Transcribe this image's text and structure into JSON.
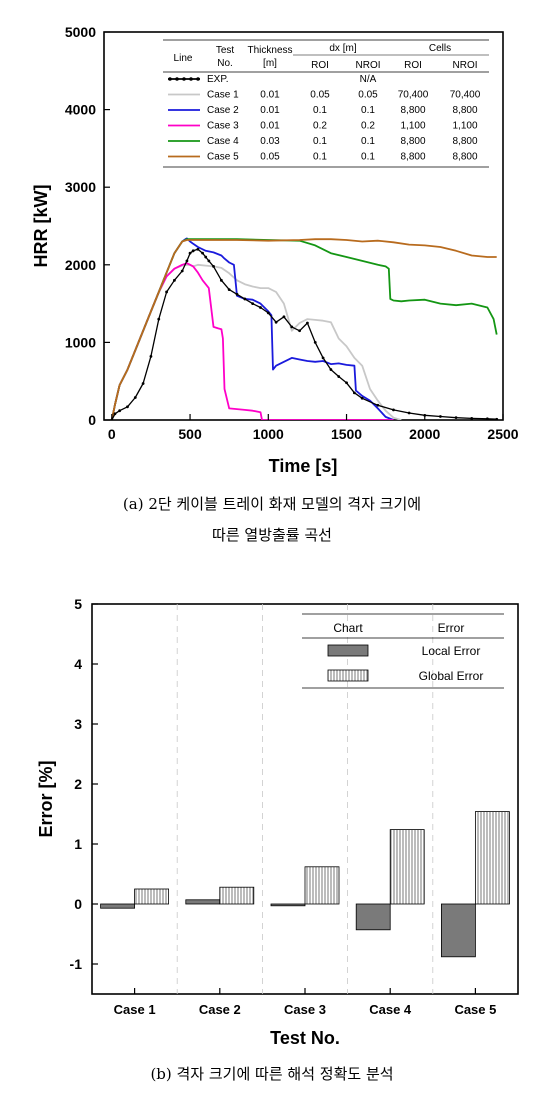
{
  "charts": [
    {
      "caption_line1": "(a) 2단 케이블 트레이 화재 모델의 격자 크기에",
      "caption_line2": "따른 열방출률 곡선",
      "chart_data": {
        "type": "line",
        "xlabel": "Time [s]",
        "ylabel": "HRR [kW]",
        "xlim": [
          -50,
          2500
        ],
        "ylim": [
          0,
          5000
        ],
        "xticks": [
          0,
          500,
          1000,
          1500,
          2000,
          2500
        ],
        "yticks": [
          0,
          1000,
          2000,
          3000,
          4000,
          5000
        ],
        "legend_table": {
          "headers": {
            "line": "Line",
            "test_no": "Test\nNo.",
            "thickness": "Thickness\n[m]",
            "dx": "dx [m]",
            "cells": "Cells",
            "roi": "ROI",
            "nroi": "NROI"
          },
          "rows": [
            {
              "name": "EXP.",
              "thickness": "",
              "dx_roi": "N/A",
              "dx_nroi": "",
              "cells_roi": "",
              "cells_nroi": ""
            },
            {
              "name": "Case 1",
              "thickness": "0.01",
              "dx_roi": "0.05",
              "dx_nroi": "0.05",
              "cells_roi": "70,400",
              "cells_nroi": "70,400"
            },
            {
              "name": "Case 2",
              "thickness": "0.01",
              "dx_roi": "0.1",
              "dx_nroi": "0.1",
              "cells_roi": "8,800",
              "cells_nroi": "8,800"
            },
            {
              "name": "Case 3",
              "thickness": "0.01",
              "dx_roi": "0.2",
              "dx_nroi": "0.2",
              "cells_roi": "1,100",
              "cells_nroi": "1,100"
            },
            {
              "name": "Case 4",
              "thickness": "0.03",
              "dx_roi": "0.1",
              "dx_nroi": "0.1",
              "cells_roi": "8,800",
              "cells_nroi": "8,800"
            },
            {
              "name": "Case 5",
              "thickness": "0.05",
              "dx_roi": "0.1",
              "dx_nroi": "0.1",
              "cells_roi": "8,800",
              "cells_nroi": "8,800"
            }
          ]
        },
        "series": [
          {
            "name": "EXP.",
            "color": "#000000",
            "marker": "dot",
            "x": [
              0,
              20,
              50,
              100,
              150,
              200,
              250,
              300,
              350,
              400,
              450,
              480,
              500,
              520,
              550,
              580,
              600,
              620,
              650,
              700,
              750,
              800,
              850,
              900,
              950,
              1000,
              1050,
              1100,
              1150,
              1200,
              1250,
              1300,
              1350,
              1400,
              1450,
              1500,
              1550,
              1600,
              1700,
              1800,
              1900,
              2000,
              2100,
              2200,
              2300,
              2400,
              2460
            ],
            "y": [
              0,
              80,
              120,
              170,
              290,
              470,
              820,
              1300,
              1650,
              1800,
              1920,
              2050,
              2150,
              2180,
              2200,
              2150,
              2100,
              2050,
              1980,
              1800,
              1680,
              1620,
              1560,
              1500,
              1450,
              1380,
              1260,
              1330,
              1200,
              1150,
              1250,
              1000,
              800,
              650,
              560,
              480,
              350,
              280,
              190,
              130,
              90,
              60,
              45,
              30,
              20,
              15,
              10
            ]
          },
          {
            "name": "Case 1",
            "color": "#c8c8c8",
            "x": [
              0,
              20,
              50,
              100,
              150,
              200,
              250,
              300,
              350,
              400,
              450,
              480,
              500,
              520,
              550,
              600,
              650,
              700,
              750,
              800,
              850,
              900,
              950,
              1000,
              1050,
              1100,
              1150,
              1200,
              1250,
              1300,
              1350,
              1400,
              1450,
              1500,
              1550,
              1600,
              1650,
              1700,
              1750,
              1800,
              1850
            ],
            "y": [
              0,
              200,
              450,
              650,
              890,
              1140,
              1390,
              1640,
              1850,
              1950,
              1990,
              2000,
              2000,
              1980,
              2000,
              1990,
              1980,
              1960,
              1890,
              1800,
              1750,
              1720,
              1700,
              1700,
              1650,
              1500,
              1150,
              1250,
              1300,
              1290,
              1280,
              1260,
              1050,
              950,
              800,
              700,
              400,
              250,
              120,
              30,
              0
            ]
          },
          {
            "name": "Case 2",
            "color": "#1a1adc",
            "x": [
              0,
              20,
              50,
              100,
              150,
              200,
              250,
              300,
              350,
              400,
              450,
              470,
              480,
              490,
              500,
              520,
              550,
              600,
              650,
              700,
              720,
              750,
              780,
              800,
              850,
              900,
              950,
              1000,
              1020,
              1030,
              1050,
              1100,
              1150,
              1200,
              1250,
              1300,
              1350,
              1400,
              1450,
              1500,
              1550,
              1560,
              1600,
              1650,
              1700,
              1750,
              1800
            ],
            "y": [
              0,
              200,
              450,
              650,
              900,
              1150,
              1400,
              1650,
              1900,
              2150,
              2300,
              2330,
              2340,
              2320,
              2300,
              2270,
              2230,
              2180,
              2160,
              2120,
              2080,
              2030,
              2000,
              1600,
              1560,
              1550,
              1500,
              1400,
              1350,
              650,
              700,
              750,
              800,
              780,
              760,
              750,
              760,
              720,
              730,
              710,
              700,
              380,
              310,
              250,
              150,
              40,
              0
            ]
          },
          {
            "name": "Case 3",
            "color": "#ff00c8",
            "x": [
              0,
              20,
              50,
              100,
              150,
              200,
              250,
              300,
              350,
              400,
              450,
              480,
              500,
              520,
              550,
              580,
              600,
              620,
              650,
              680,
              700,
              710,
              720,
              750,
              800,
              850,
              900,
              950,
              960,
              1000,
              1200,
              1500,
              1800
            ],
            "y": [
              0,
              200,
              450,
              650,
              900,
              1150,
              1400,
              1650,
              1850,
              1950,
              2000,
              2020,
              2000,
              1980,
              1900,
              1800,
              1750,
              1700,
              1200,
              1180,
              1170,
              1050,
              400,
              150,
              140,
              130,
              120,
              100,
              0,
              0,
              0,
              0,
              0
            ]
          },
          {
            "name": "Case 4",
            "color": "#149614",
            "x": [
              0,
              20,
              50,
              100,
              150,
              200,
              250,
              300,
              350,
              400,
              450,
              480,
              500,
              600,
              800,
              1000,
              1200,
              1300,
              1400,
              1500,
              1600,
              1700,
              1750,
              1770,
              1780,
              1800,
              1850,
              1900,
              2000,
              2100,
              2200,
              2300,
              2400,
              2440,
              2460
            ],
            "y": [
              0,
              200,
              450,
              650,
              900,
              1150,
              1400,
              1650,
              1900,
              2150,
              2300,
              2330,
              2330,
              2330,
              2330,
              2320,
              2310,
              2250,
              2150,
              2100,
              2050,
              2000,
              1980,
              1950,
              1560,
              1540,
              1530,
              1540,
              1550,
              1500,
              1480,
              1500,
              1450,
              1300,
              1100
            ]
          },
          {
            "name": "Case 5",
            "color": "#b86b1e",
            "x": [
              0,
              20,
              50,
              100,
              150,
              200,
              250,
              300,
              350,
              400,
              450,
              480,
              500,
              600,
              800,
              1000,
              1200,
              1300,
              1400,
              1500,
              1600,
              1700,
              1800,
              1900,
              2000,
              2100,
              2200,
              2300,
              2400,
              2460
            ],
            "y": [
              0,
              200,
              450,
              650,
              900,
              1150,
              1400,
              1650,
              1900,
              2150,
              2300,
              2320,
              2320,
              2320,
              2320,
              2310,
              2320,
              2330,
              2330,
              2320,
              2300,
              2310,
              2290,
              2260,
              2250,
              2230,
              2180,
              2120,
              2100,
              2100
            ]
          }
        ]
      }
    },
    {
      "caption_line1": "(b) 격자 크기에 따른 해석 정확도 분석",
      "chart_data": {
        "type": "bar",
        "xlabel": "Test No.",
        "ylabel": "Error [%]",
        "ylim": [
          -1.5,
          5
        ],
        "yticks": [
          -1,
          0,
          1,
          2,
          3,
          4,
          5
        ],
        "categories": [
          "Case 1",
          "Case 2",
          "Case 3",
          "Case 4",
          "Case 5"
        ],
        "grid": "vertical-dashed",
        "legend_table": {
          "headers": {
            "chart": "Chart",
            "error": "Error"
          },
          "rows": [
            "Local Error",
            "Global Error"
          ]
        },
        "series": [
          {
            "name": "Local Error",
            "pattern": "solid-gray",
            "color": "#7a7a7a",
            "values": [
              -0.07,
              0.07,
              -0.03,
              -0.43,
              -0.88
            ]
          },
          {
            "name": "Global Error",
            "pattern": "vertical-hatch",
            "color": "#ffffff",
            "values": [
              0.25,
              0.28,
              0.62,
              1.24,
              1.54
            ]
          }
        ]
      }
    }
  ]
}
